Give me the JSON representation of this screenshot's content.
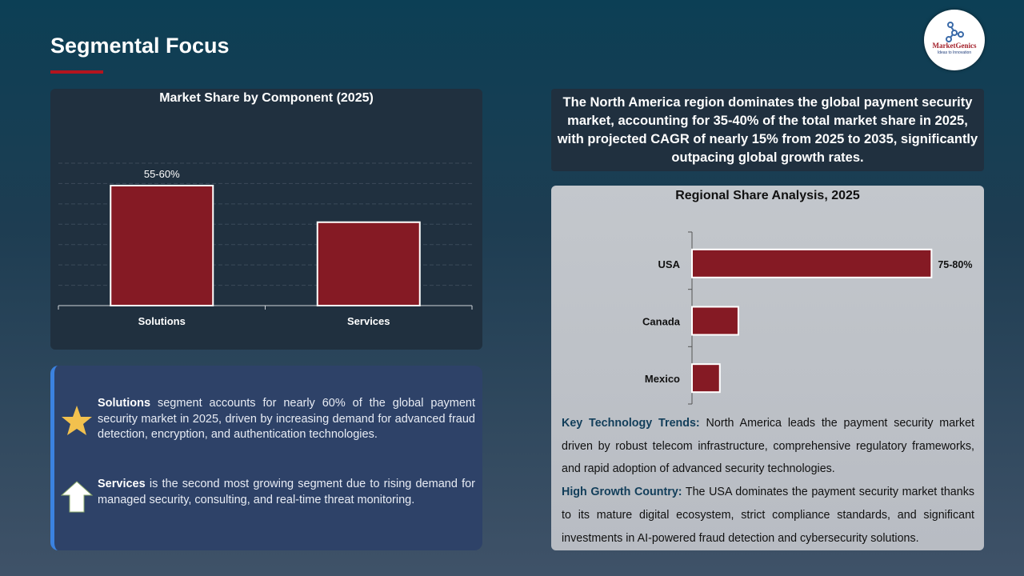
{
  "header": {
    "title": "Segmental Focus",
    "logo_text": "MarketGenics",
    "logo_tagline": "Ideas to Innovation"
  },
  "colors": {
    "bar": "#851a24",
    "accent": "#b4141e",
    "highlight": "#123e5a"
  },
  "chart_data": [
    {
      "type": "bar",
      "title": "Market Share by Component (2025)",
      "categories": [
        "Solutions",
        "Services"
      ],
      "values": [
        59,
        41
      ],
      "data_labels": [
        "55-60%",
        ""
      ],
      "ylim": [
        0,
        70
      ],
      "grid": true,
      "unit": "%"
    },
    {
      "type": "bar",
      "orientation": "horizontal",
      "title": "Regional Share Analysis, 2025",
      "categories": [
        "USA",
        "Canada",
        "Mexico"
      ],
      "values": [
        77.5,
        15,
        9
      ],
      "data_labels": [
        "75-80%",
        "",
        ""
      ],
      "xlim": [
        0,
        80
      ],
      "grid": false,
      "unit": "%"
    }
  ],
  "notes": [
    {
      "icon": "star-icon",
      "bold": "Solutions",
      "text": " segment accounts for nearly 60% of the global payment security market in 2025, driven by increasing demand for advanced fraud detection, encryption, and authentication technologies."
    },
    {
      "icon": "arrow-up-icon",
      "bold": "Services",
      "text": " is the second most growing segment due to rising demand for managed security, consulting, and real-time threat monitoring."
    }
  ],
  "callout": "The North America region dominates the global payment security market, accounting for 35-40% of the total market share in 2025, with projected CAGR of nearly 15% from 2025 to 2035, significantly outpacing global growth rates.",
  "trends": [
    {
      "label": "Key Technology Trends:",
      "text": " North America leads the payment security market driven by robust telecom infrastructure, comprehensive regulatory frameworks, and rapid adoption of advanced security technologies."
    },
    {
      "label": "High Growth Country:",
      "text": " The USA dominates the payment security market thanks to its mature digital ecosystem, strict compliance standards, and significant investments in AI-powered fraud detection and cybersecurity solutions."
    }
  ]
}
